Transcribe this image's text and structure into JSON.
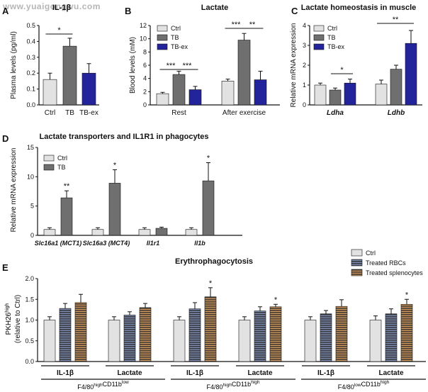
{
  "watermark": "www.yuaigongwu.com",
  "colors": {
    "ctrl": "#e2e2e2",
    "tb": "#6f6f6f",
    "tbex": "#23239c",
    "rbc_stripe": "#7f8fb4",
    "spleno_stripe": "#d29a5e",
    "axis": "#111111"
  },
  "chart_data": [
    {
      "id": "A",
      "panel_letter": "A",
      "type": "bar",
      "title": "IL-1β",
      "ylabel": "Plasma levels (pg/ml)",
      "ylim": [
        0,
        0.5
      ],
      "yticks": [
        "0.0",
        "0.1",
        "0.2",
        "0.3",
        "0.4",
        "0.5"
      ],
      "categories": [
        "Ctrl",
        "TB",
        "TB-ex"
      ],
      "values": [
        0.16,
        0.37,
        0.2
      ],
      "errors": [
        0.04,
        0.05,
        0.06
      ],
      "significance": [
        {
          "from": 0,
          "to": 1,
          "label": "*"
        }
      ]
    },
    {
      "id": "B",
      "panel_letter": "B",
      "type": "bar",
      "title": "Lactate",
      "ylabel": "Blood levels (mM)",
      "ylim": [
        0,
        12
      ],
      "yticks": [
        "0",
        "2",
        "4",
        "6",
        "8",
        "10",
        "12"
      ],
      "groups": [
        "Rest",
        "After exercise"
      ],
      "series": [
        {
          "name": "Ctrl",
          "values": [
            1.7,
            3.6
          ],
          "errors": [
            0.2,
            0.3
          ]
        },
        {
          "name": "TB",
          "values": [
            4.6,
            9.8
          ],
          "errors": [
            0.5,
            1.0
          ]
        },
        {
          "name": "TB-ex",
          "values": [
            2.3,
            3.8
          ],
          "errors": [
            0.5,
            1.3
          ]
        }
      ],
      "significance": [
        {
          "group": 0,
          "from": 0,
          "to": 1,
          "label": "***"
        },
        {
          "group": 0,
          "from": 1,
          "to": 2,
          "label": "***"
        },
        {
          "group": 1,
          "from": 0,
          "to": 1,
          "label": "***"
        },
        {
          "group": 1,
          "from": 1,
          "to": 2,
          "label": "**"
        }
      ],
      "legend": "top-left"
    },
    {
      "id": "C",
      "panel_letter": "C",
      "type": "bar",
      "title": "Lactate homeostasis in muscle",
      "ylabel": "Relative mRNA expression",
      "ylim": [
        0,
        4
      ],
      "yticks": [
        "0",
        "1",
        "2",
        "3",
        "4"
      ],
      "groups": [
        "Ldha",
        "Ldhb"
      ],
      "series": [
        {
          "name": "Ctrl",
          "values": [
            1.0,
            1.05
          ],
          "errors": [
            0.1,
            0.2
          ]
        },
        {
          "name": "TB",
          "values": [
            0.75,
            1.8
          ],
          "errors": [
            0.1,
            0.2
          ]
        },
        {
          "name": "TB-ex",
          "values": [
            1.1,
            3.1
          ],
          "errors": [
            0.2,
            0.65
          ]
        }
      ],
      "significance": [
        {
          "group": 0,
          "from": 1,
          "to": 2,
          "label": "*"
        },
        {
          "group": 1,
          "from": 0,
          "to": 2,
          "label": "**"
        }
      ],
      "legend": "top-left"
    },
    {
      "id": "D",
      "panel_letter": "D",
      "type": "bar",
      "title": "Lactate transporters and IL1R1 in phagocytes",
      "ylabel": "Relative mRNA expression",
      "ylim": [
        0,
        15
      ],
      "yticks": [
        "0",
        "5",
        "10",
        "15"
      ],
      "groups": [
        "Slc16a1 (MCT1)",
        "Slc16a3 (MCT4)",
        "Il1r1",
        "Il1b"
      ],
      "series": [
        {
          "name": "Ctrl",
          "values": [
            1.0,
            1.0,
            1.0,
            1.0
          ],
          "errors": [
            0.3,
            0.3,
            0.3,
            0.3
          ]
        },
        {
          "name": "TB",
          "values": [
            6.4,
            8.9,
            1.2,
            9.3
          ],
          "errors": [
            1.2,
            2.3,
            0.2,
            3.1
          ]
        }
      ],
      "significance": [
        {
          "group": 0,
          "bar": 1,
          "label": "**"
        },
        {
          "group": 1,
          "bar": 1,
          "label": "*"
        },
        {
          "group": 3,
          "bar": 1,
          "label": "*"
        }
      ],
      "legend": "top-left"
    },
    {
      "id": "E",
      "panel_letter": "E",
      "type": "bar",
      "title": "Erythrophagocytosis",
      "ylabel_line1": "PKH26",
      "ylabel_sup": "high",
      "ylabel_line2": "(relative to Ctrl)",
      "ylim": [
        0,
        2.0
      ],
      "yticks": [
        "0.0",
        "0.5",
        "1.0",
        "1.5",
        "2.0"
      ],
      "legend": "top-right",
      "series": [
        {
          "name": "Ctrl",
          "values": [
            1.0,
            1.0,
            1.0,
            1.0,
            1.0,
            1.0
          ],
          "errors": [
            0.08,
            0.08,
            0.08,
            0.08,
            0.08,
            0.1
          ]
        },
        {
          "name": "Treated RBCs",
          "values": [
            1.28,
            1.12,
            1.27,
            1.22,
            1.15,
            1.15
          ],
          "errors": [
            0.12,
            0.08,
            0.15,
            0.1,
            0.08,
            0.12
          ]
        },
        {
          "name": "Treated splenocytes",
          "values": [
            1.42,
            1.3,
            1.56,
            1.32,
            1.33,
            1.38
          ],
          "errors": [
            0.2,
            0.1,
            0.22,
            0.06,
            0.16,
            0.12
          ]
        }
      ],
      "groups": [
        "IL-1β",
        "Lactate",
        "IL-1β",
        "Lactate",
        "IL-1β",
        "Lactate"
      ],
      "significance": [
        {
          "group": 2,
          "bar": 2,
          "label": "*"
        },
        {
          "group": 3,
          "bar": 2,
          "label": "*"
        },
        {
          "group": 5,
          "bar": 2,
          "label": "*"
        }
      ],
      "populations": [
        {
          "pre": "F4/80",
          "sup1": "high",
          "mid": "CD11b",
          "sup2": "low"
        },
        {
          "pre": "F4/80",
          "sup1": "high",
          "mid": "CD11b",
          "sup2": "high"
        },
        {
          "pre": "F4/80",
          "sup1": "low",
          "mid": "CD11b",
          "sup2": "high"
        }
      ]
    }
  ]
}
